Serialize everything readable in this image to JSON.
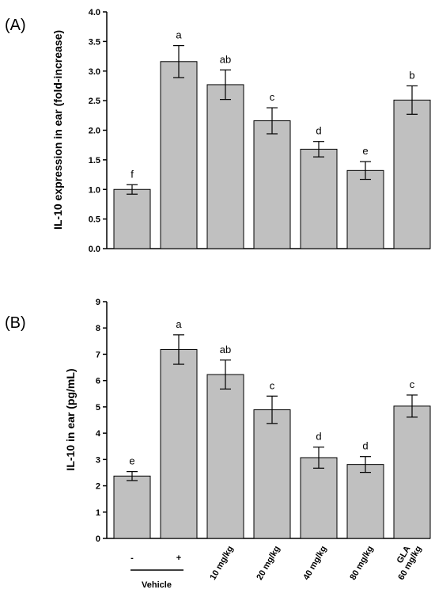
{
  "chart_data": [
    {
      "type": "bar",
      "panel_label": "(A)",
      "ylabel": "IL-10 expression in ear (fold-increase)",
      "ylim": [
        0,
        4.0
      ],
      "yticks": [
        "0.0",
        "0.5",
        "1.0",
        "1.5",
        "2.0",
        "2.5",
        "3.0",
        "3.5",
        "4.0"
      ],
      "values": [
        1.0,
        3.16,
        2.77,
        2.16,
        1.68,
        1.32,
        2.51
      ],
      "errors": [
        0.08,
        0.27,
        0.25,
        0.22,
        0.13,
        0.15,
        0.24
      ],
      "significance": [
        "f",
        "a",
        "ab",
        "c",
        "d",
        "e",
        "b"
      ]
    },
    {
      "type": "bar",
      "panel_label": "(B)",
      "ylabel": "IL-10 in ear (pg/mL)",
      "ylim": [
        0,
        9
      ],
      "yticks": [
        "0",
        "1",
        "2",
        "3",
        "4",
        "5",
        "6",
        "7",
        "8",
        "9"
      ],
      "values": [
        2.37,
        7.18,
        6.23,
        4.89,
        3.07,
        2.81,
        5.03
      ],
      "errors": [
        0.17,
        0.56,
        0.55,
        0.52,
        0.4,
        0.3,
        0.42
      ],
      "significance": [
        "e",
        "a",
        "ab",
        "c",
        "d",
        "d",
        "c"
      ]
    }
  ],
  "x_categories": {
    "vehicle_signs": [
      "-",
      "+"
    ],
    "vehicle_group_label": "Vehicle",
    "dose_labels": [
      "10 mg/kg",
      "20 mg/kg",
      "40 mg/kg",
      "80 mg/kg"
    ],
    "gla_label_line1": "GLA",
    "gla_label_line2": "60 mg/kg"
  }
}
